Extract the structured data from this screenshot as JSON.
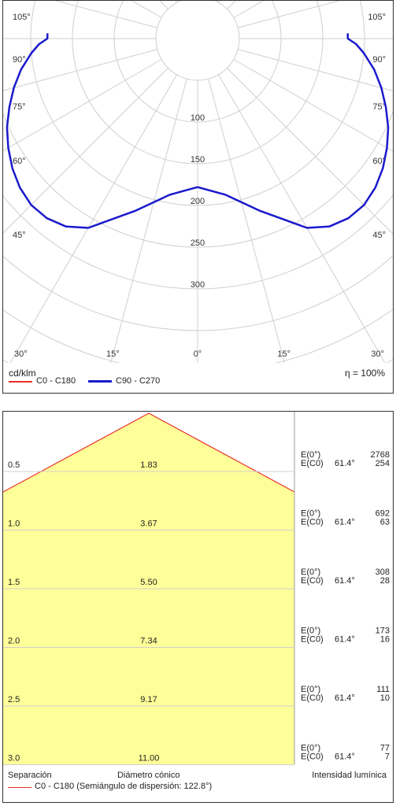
{
  "polar": {
    "unit": "cd/klm",
    "efficiency": "η = 100%",
    "legend": [
      {
        "label": "C0 - C180",
        "color": "#e8302a"
      },
      {
        "label": "C90 - C270",
        "color": "#1a1acc"
      }
    ],
    "radial_ticks": [
      "100",
      "150",
      "200",
      "250",
      "300"
    ],
    "angle_labels_left": [
      "105°",
      "90°",
      "75°",
      "60°",
      "45°",
      "30°",
      "15°"
    ],
    "angle_labels_right": [
      "105°",
      "90°",
      "75°",
      "60°",
      "45°",
      "30°",
      "15°"
    ],
    "angle_label_bottom": "0°"
  },
  "chart_data": [
    {
      "type": "line",
      "polar": true,
      "unit": "cd/klm",
      "r_ticks": [
        100,
        150,
        200,
        250,
        300
      ],
      "series": [
        {
          "name": "C90 - C270",
          "color": "#1a1acc",
          "angles_deg": [
            0,
            10,
            20,
            30,
            35,
            40,
            45,
            50,
            55,
            60,
            65,
            70,
            75,
            80,
            85,
            88,
            90,
            92
          ],
          "values": [
            178,
            190,
            220,
            262,
            275,
            281,
            282,
            278,
            271,
            262,
            252,
            240,
            228,
            215,
            200,
            190,
            180,
            180
          ]
        }
      ]
    },
    {
      "type": "table",
      "columns": [
        "Separación",
        "Diámetro cónico",
        "Intensidad lumínica"
      ],
      "rows": [
        {
          "h": "0.5",
          "diameter": "1.83",
          "e0": "2768",
          "ec0": "254"
        },
        {
          "h": "1.0",
          "diameter": "3.67",
          "e0": "692",
          "ec0": "63"
        },
        {
          "h": "1.5",
          "diameter": "5.50",
          "e0": "308",
          "ec0": "28"
        },
        {
          "h": "2.0",
          "diameter": "7.34",
          "e0": "173",
          "ec0": "16"
        },
        {
          "h": "2.5",
          "diameter": "9.17",
          "e0": "111",
          "ec0": "10"
        },
        {
          "h": "3.0",
          "diameter": "11.00",
          "e0": "77",
          "ec0": "7"
        }
      ]
    }
  ],
  "cone": {
    "e0_label": "E(0°)",
    "ec0_label": "E(C0)",
    "angle": "61.4°",
    "col_separation": "Separación",
    "col_diameter": "Diámetro cónico",
    "col_intensity": "Intensidad lumínica",
    "legend_label": "C0 - C180 (Semiángulo de dispersión: 122.8°)",
    "fill_color": "#ffff99",
    "line_color": "#e8302a"
  }
}
